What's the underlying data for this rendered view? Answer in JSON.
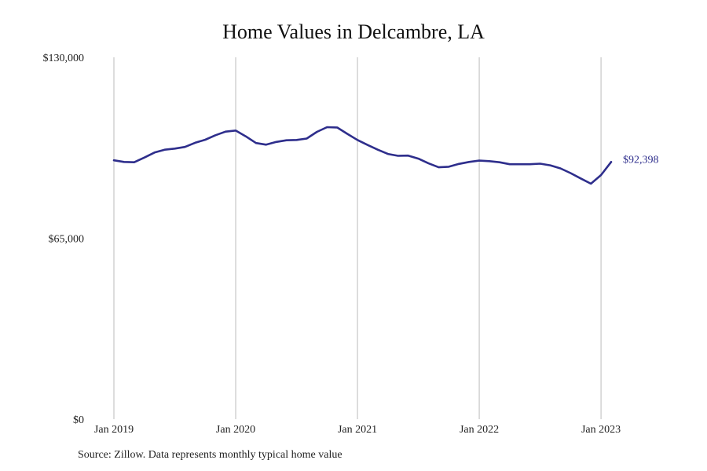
{
  "chart_data": {
    "type": "line",
    "title": "Home Values in Delcambre, LA",
    "source": "Source: Zillow. Data represents monthly typical home value",
    "xlabel": "",
    "ylabel": "",
    "ylim": [
      0,
      130000
    ],
    "y_ticks": [
      {
        "value": 0,
        "label": "$0"
      },
      {
        "value": 65000,
        "label": "$65,000"
      },
      {
        "value": 130000,
        "label": "$130,000"
      }
    ],
    "x_range": [
      "2019-01",
      "2023-02"
    ],
    "x_ticks": [
      {
        "date": "2019-01",
        "label": "Jan 2019"
      },
      {
        "date": "2020-01",
        "label": "Jan 2020"
      },
      {
        "date": "2021-01",
        "label": "Jan 2021"
      },
      {
        "date": "2022-01",
        "label": "Jan 2022"
      },
      {
        "date": "2023-01",
        "label": "Jan 2023"
      }
    ],
    "grid": {
      "vertical": true,
      "horizontal": false
    },
    "legend": "none",
    "end_label": "$92,398",
    "colors": {
      "line": "#2e2e8c",
      "grid": "#bbbbbb",
      "end_label": "#2e2e8c"
    },
    "series": [
      {
        "x": [
          "2019-01",
          "2019-02",
          "2019-03",
          "2019-04",
          "2019-05",
          "2019-06",
          "2019-07",
          "2019-08",
          "2019-09",
          "2019-10",
          "2019-11",
          "2019-12",
          "2020-01",
          "2020-02",
          "2020-03",
          "2020-04",
          "2020-05",
          "2020-06",
          "2020-07",
          "2020-08",
          "2020-09",
          "2020-10",
          "2020-11",
          "2020-12",
          "2021-01",
          "2021-02",
          "2021-03",
          "2021-04",
          "2021-05",
          "2021-06",
          "2021-07",
          "2021-08",
          "2021-09",
          "2021-10",
          "2021-11",
          "2021-12",
          "2022-01",
          "2022-02",
          "2022-03",
          "2022-04",
          "2022-05",
          "2022-06",
          "2022-07",
          "2022-08",
          "2022-09",
          "2022-10",
          "2022-11",
          "2022-12",
          "2023-01",
          "2023-02"
        ],
        "values": [
          93000,
          92400,
          92300,
          94000,
          95800,
          96800,
          97200,
          97800,
          99300,
          100400,
          102000,
          103300,
          103700,
          101600,
          99200,
          98600,
          99600,
          100200,
          100300,
          100800,
          103200,
          104900,
          104800,
          102500,
          100300,
          98500,
          96800,
          95300,
          94600,
          94700,
          93600,
          91900,
          90500,
          90700,
          91700,
          92400,
          92900,
          92700,
          92300,
          91600,
          91600,
          91600,
          91800,
          91200,
          90100,
          88400,
          86500,
          84600,
          87700,
          92398
        ]
      }
    ]
  }
}
